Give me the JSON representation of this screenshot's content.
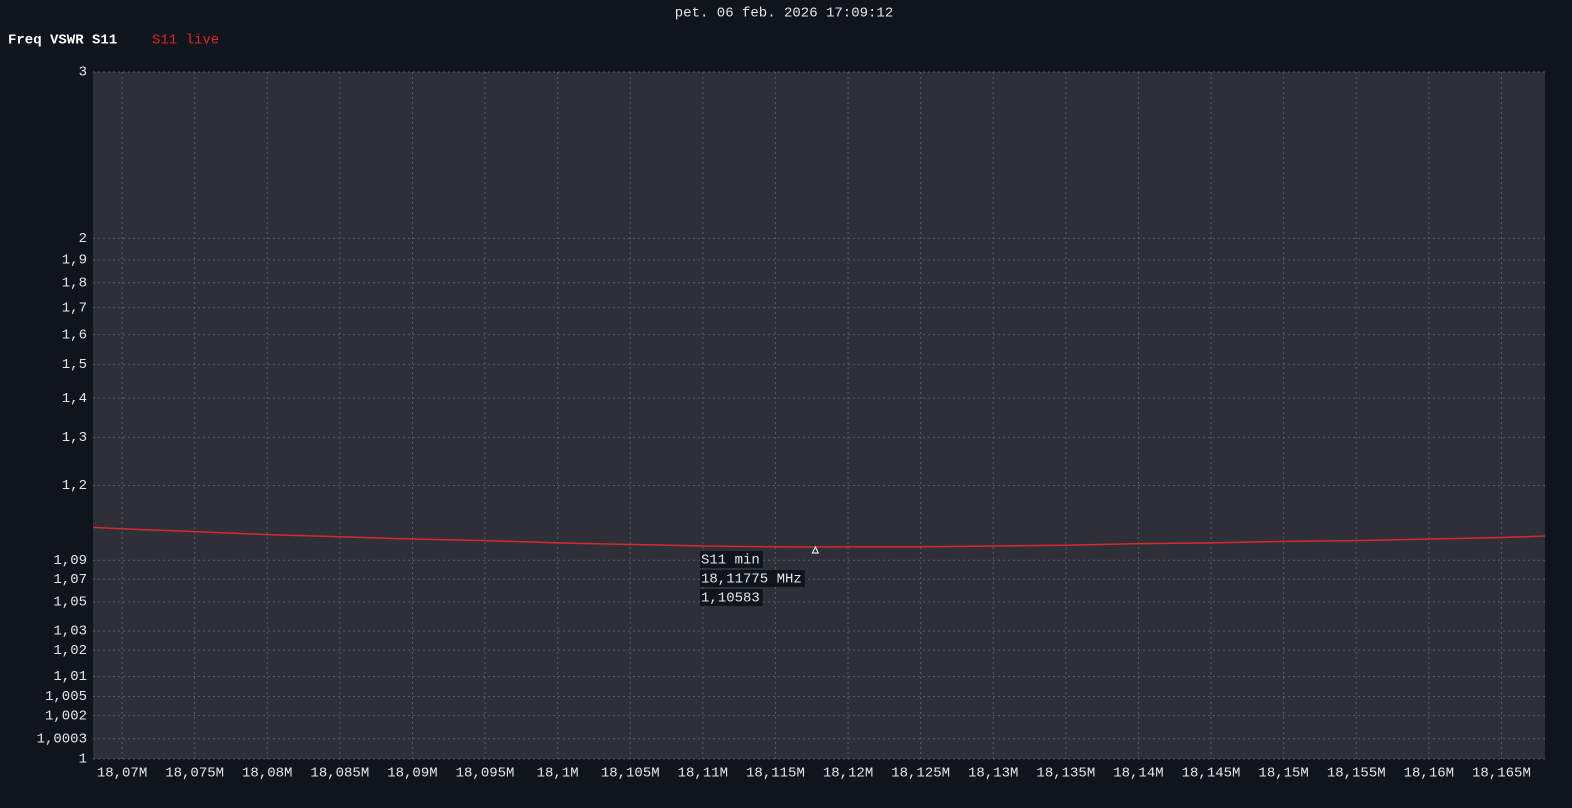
{
  "chart_data": {
    "type": "line",
    "timestamp": "pet. 06 feb. 2026 17:09:12",
    "title": "Freq VSWR S11",
    "x": [
      18068000,
      18070000,
      18075000,
      18080000,
      18085000,
      18090000,
      18095000,
      18100000,
      18105000,
      18110000,
      18115000,
      18117750,
      18120000,
      18125000,
      18130000,
      18135000,
      18140000,
      18145000,
      18150000,
      18155000,
      18160000,
      18165000,
      18168000
    ],
    "series": [
      {
        "name": "S11 live",
        "color": "#d42a2a",
        "values": [
          1.132,
          1.13,
          1.126,
          1.122,
          1.119,
          1.116,
          1.114,
          1.111,
          1.109,
          1.107,
          1.106,
          1.10583,
          1.106,
          1.106,
          1.107,
          1.108,
          1.11,
          1.111,
          1.113,
          1.114,
          1.116,
          1.118,
          1.12
        ]
      }
    ],
    "xlim": [
      18068000,
      18168000
    ],
    "xticks": [
      {
        "value": 18070000,
        "label": "18,07M"
      },
      {
        "value": 18075000,
        "label": "18,075M"
      },
      {
        "value": 18080000,
        "label": "18,08M"
      },
      {
        "value": 18085000,
        "label": "18,085M"
      },
      {
        "value": 18090000,
        "label": "18,09M"
      },
      {
        "value": 18095000,
        "label": "18,095M"
      },
      {
        "value": 18100000,
        "label": "18,1M"
      },
      {
        "value": 18105000,
        "label": "18,105M"
      },
      {
        "value": 18110000,
        "label": "18,11M"
      },
      {
        "value": 18115000,
        "label": "18,115M"
      },
      {
        "value": 18120000,
        "label": "18,12M"
      },
      {
        "value": 18125000,
        "label": "18,125M"
      },
      {
        "value": 18130000,
        "label": "18,13M"
      },
      {
        "value": 18135000,
        "label": "18,135M"
      },
      {
        "value": 18140000,
        "label": "18,14M"
      },
      {
        "value": 18145000,
        "label": "18,145M"
      },
      {
        "value": 18150000,
        "label": "18,15M"
      },
      {
        "value": 18155000,
        "label": "18,155M"
      },
      {
        "value": 18160000,
        "label": "18,16M"
      },
      {
        "value": 18165000,
        "label": "18,165M"
      }
    ],
    "ylim": [
      1,
      3
    ],
    "yscale": "power",
    "yexponent": 0.4,
    "yticks": [
      1,
      {
        "value": 1.0003,
        "label": "1,0003"
      },
      {
        "value": 1.002,
        "label": "1,002"
      },
      {
        "value": 1.005,
        "label": "1,005"
      },
      {
        "value": 1.01,
        "label": "1,01"
      },
      {
        "value": 1.02,
        "label": "1,02"
      },
      {
        "value": 1.03,
        "label": "1,03"
      },
      {
        "value": 1.05,
        "label": "1,05"
      },
      {
        "value": 1.07,
        "label": "1,07"
      },
      {
        "value": 1.09,
        "label": "1,09"
      },
      {
        "value": 1.2,
        "label": "1,2"
      },
      {
        "value": 1.3,
        "label": "1,3"
      },
      {
        "value": 1.4,
        "label": "1,4"
      },
      {
        "value": 1.5,
        "label": "1,5"
      },
      {
        "value": 1.6,
        "label": "1,6"
      },
      {
        "value": 1.7,
        "label": "1,7"
      },
      {
        "value": 1.8,
        "label": "1,8"
      },
      {
        "value": 1.9,
        "label": "1,9"
      },
      2,
      3
    ],
    "grid": true,
    "marker": {
      "label": "S11 min",
      "x": 18117750,
      "x_label": "18,11775 MHz",
      "y": 1.10583,
      "y_label": "1,10583"
    }
  }
}
